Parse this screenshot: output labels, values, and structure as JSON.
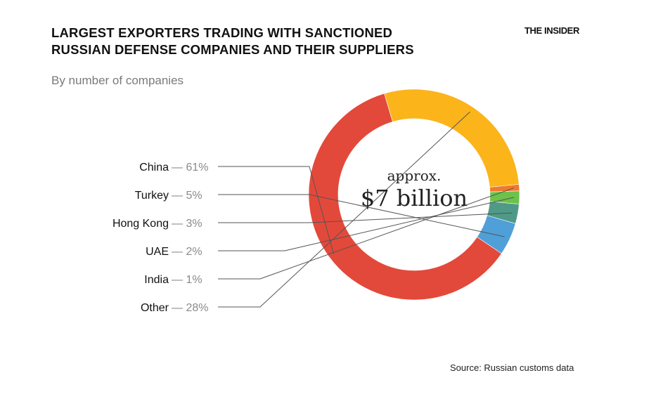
{
  "header": {
    "title_line1": "LARGEST EXPORTERS TRADING WITH SANCTIONED",
    "title_line2": "RUSSIAN DEFENSE COMPANIES AND THEIR SUPPLIERS",
    "brand": "THE INSIDER",
    "subtitle": "By number of companies"
  },
  "center": {
    "line1": "approx.",
    "line2": "$7 billion"
  },
  "footer": {
    "source": "Source: Russian customs data"
  },
  "chart_data": {
    "type": "pie",
    "title": "LARGEST EXPORTERS TRADING WITH SANCTIONED RUSSIAN DEFENSE COMPANIES AND THEIR SUPPLIERS",
    "subtitle": "By number of companies",
    "donut": true,
    "center_label": "approx. $7 billion",
    "slices": [
      {
        "label": "China",
        "value": 61,
        "display": "61%",
        "color": "#e3493a"
      },
      {
        "label": "Other",
        "value": 28,
        "display": "28%",
        "color": "#fbb41a"
      },
      {
        "label": "India",
        "value": 1,
        "display": "1%",
        "color": "#ee7a30"
      },
      {
        "label": "UAE",
        "value": 2,
        "display": "2%",
        "color": "#6cc24a"
      },
      {
        "label": "Hong Kong",
        "value": 3,
        "display": "3%",
        "color": "#4f9a86"
      },
      {
        "label": "Turkey",
        "value": 5,
        "display": "5%",
        "color": "#4f9fd9"
      }
    ],
    "label_order": [
      "China",
      "Turkey",
      "Hong Kong",
      "UAE",
      "India",
      "Other"
    ]
  }
}
